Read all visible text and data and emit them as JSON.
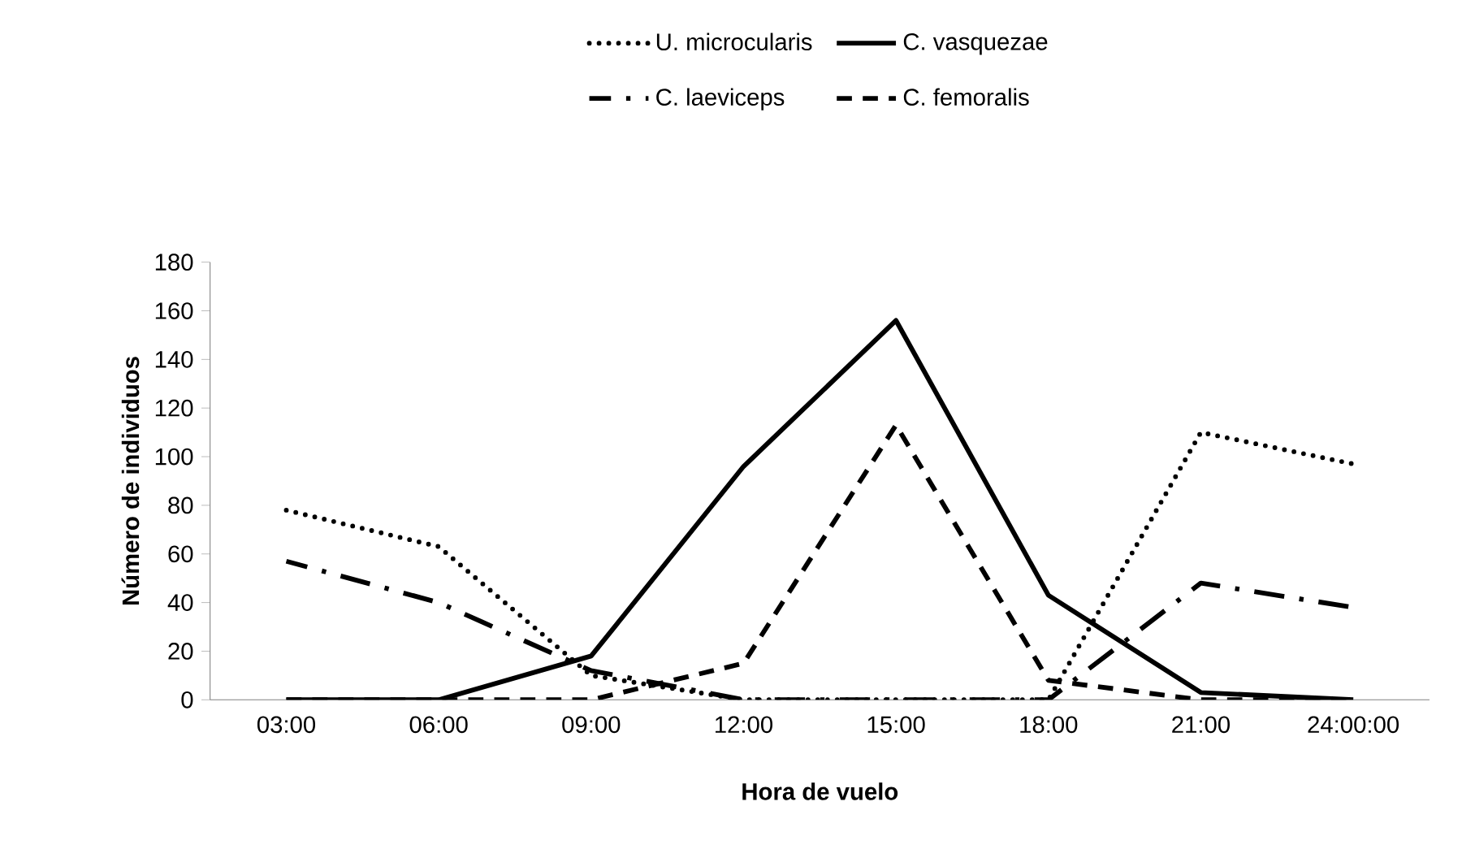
{
  "chart_data": {
    "type": "line",
    "xlabel": "Hora de vuelo",
    "ylabel": "Número de individuos",
    "categories": [
      "03:00",
      "06:00",
      "09:00",
      "12:00",
      "15:00",
      "18:00",
      "21:00",
      "24:00:00"
    ],
    "series": [
      {
        "name": "U. microcularis",
        "color": "#000000",
        "line_style": "dotted",
        "values": [
          78,
          63,
          10,
          0,
          0,
          0,
          110,
          97
        ]
      },
      {
        "name": "C. vasquezae",
        "color": "#000000",
        "line_style": "solid",
        "values": [
          0,
          0,
          18,
          96,
          156,
          43,
          3,
          0
        ]
      },
      {
        "name": "C. laeviceps",
        "color": "#000000",
        "line_style": "dashdot",
        "values": [
          57,
          40,
          12,
          0,
          0,
          0,
          48,
          38
        ]
      },
      {
        "name": "C. femoralis",
        "color": "#000000",
        "line_style": "dashed",
        "values": [
          0,
          0,
          0,
          15,
          113,
          8,
          0,
          0
        ]
      }
    ],
    "ylim": [
      0,
      180
    ],
    "yticks": [
      0,
      20,
      40,
      60,
      80,
      100,
      120,
      140,
      160,
      180
    ],
    "grid": false,
    "legend": "top",
    "marker": "none"
  }
}
